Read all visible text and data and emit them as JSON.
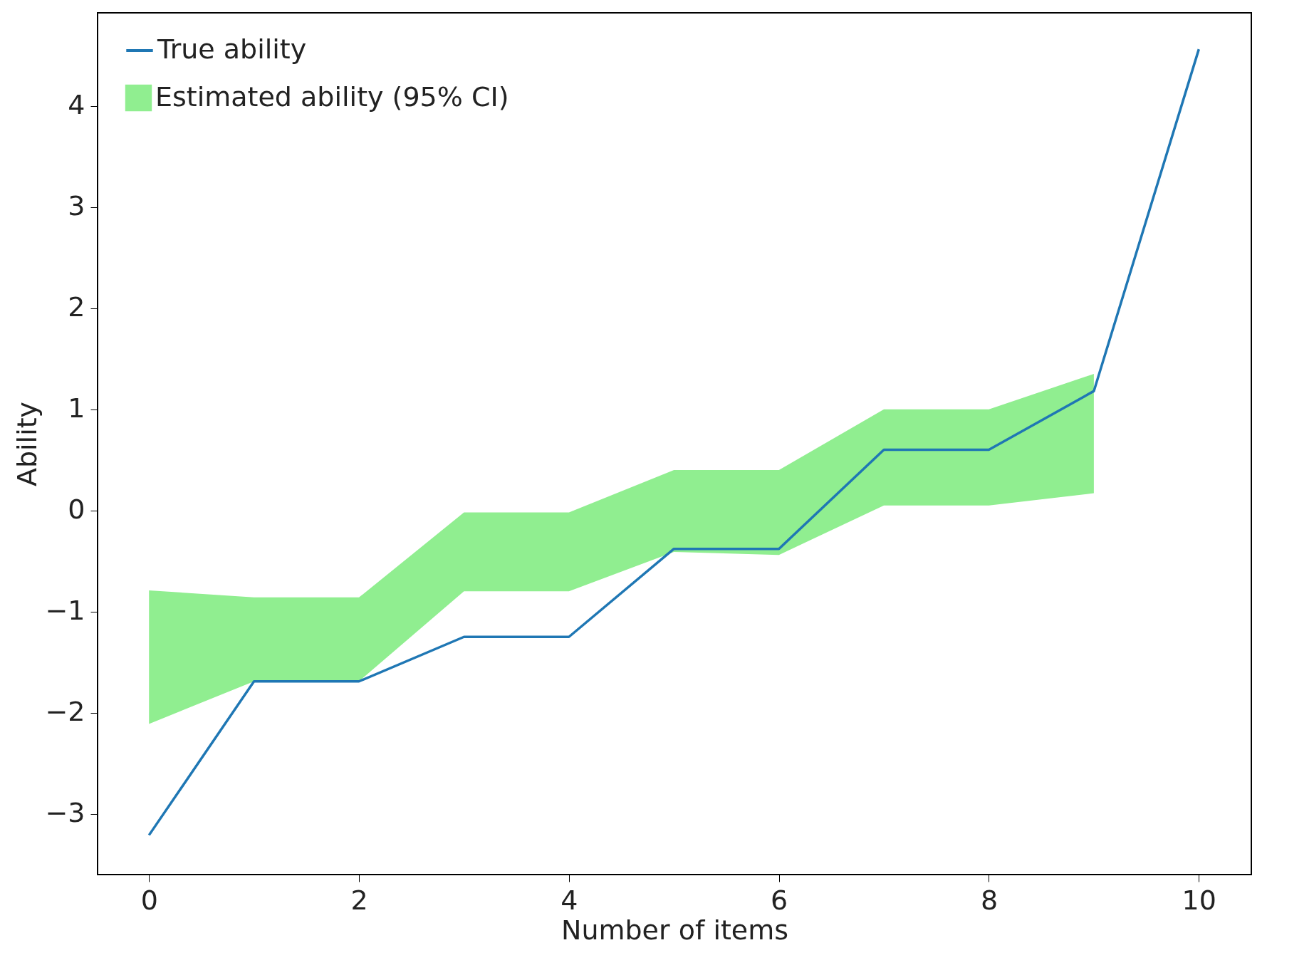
{
  "chart_data": {
    "type": "line",
    "xlabel": "Number of items",
    "ylabel": "Ability",
    "xlim": [
      -0.49,
      10.5
    ],
    "xticks": [
      0,
      2,
      4,
      6,
      8,
      10
    ],
    "ylim": [
      -3.6,
      4.92
    ],
    "yticks": [
      -3,
      -2,
      -1,
      0,
      1,
      2,
      3,
      4
    ],
    "grid": false,
    "legend": "top left",
    "marker": "none",
    "line_style": "solid",
    "series": [
      {
        "name": "True ability",
        "color": "#1f77b4",
        "x": [
          0,
          1,
          2,
          3,
          4,
          5,
          6,
          7,
          8,
          9,
          10
        ],
        "values": [
          -3.21,
          -1.69,
          -1.69,
          -1.25,
          -1.25,
          -0.38,
          -0.38,
          0.6,
          0.6,
          1.18,
          4.56
        ]
      },
      {
        "name": "Estimated ability (95% CI)",
        "type": "area",
        "color": "#90ee90",
        "x": [
          0,
          1,
          2,
          3,
          4,
          5,
          6,
          7,
          8,
          9
        ],
        "values": [
          null,
          null,
          null,
          null,
          null,
          null,
          null,
          null,
          null,
          null
        ],
        "lower": [
          -2.11,
          -1.69,
          -1.69,
          -0.8,
          -0.8,
          -0.41,
          -0.44,
          0.05,
          0.05,
          0.17
        ],
        "upper": [
          -0.79,
          -0.86,
          -0.86,
          -0.02,
          -0.02,
          0.4,
          0.4,
          1.0,
          1.0,
          1.35
        ]
      }
    ]
  }
}
